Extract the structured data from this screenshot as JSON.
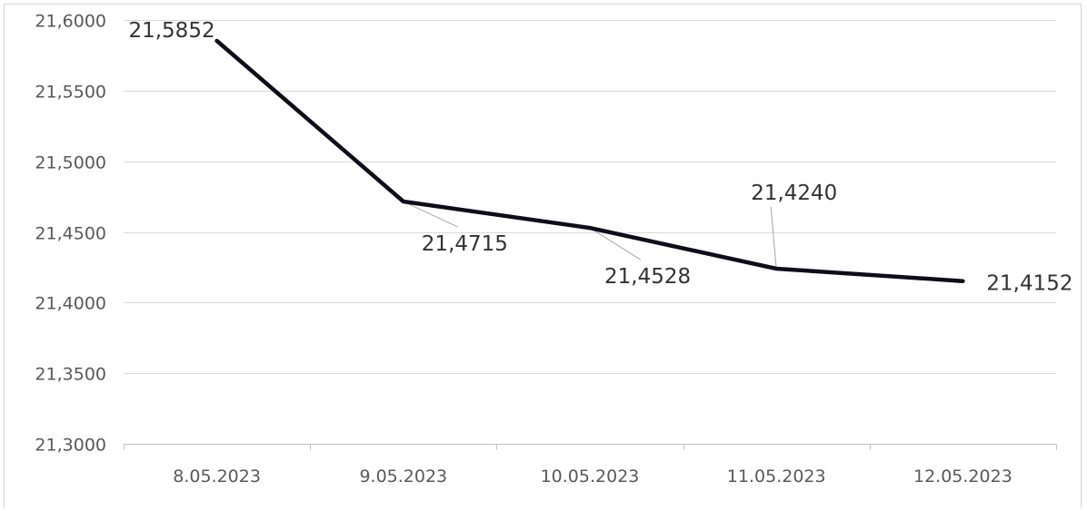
{
  "chart_data": {
    "type": "line",
    "title": "",
    "xlabel": "",
    "ylabel": "",
    "categories": [
      "8.05.2023",
      "9.05.2023",
      "10.05.2023",
      "11.05.2023",
      "12.05.2023"
    ],
    "series": [
      {
        "values": [
          21.5852,
          21.4715,
          21.4528,
          21.424,
          21.4152
        ],
        "color": "#0d0d1c"
      }
    ],
    "data_labels": [
      "21,5852",
      "21,4715",
      "21,4528",
      "21,4240",
      "21,4152"
    ],
    "ylim": [
      21.3,
      21.6
    ],
    "y_ticks": [
      21.3,
      21.35,
      21.4,
      21.45,
      21.5,
      21.55,
      21.6
    ],
    "y_tick_labels": [
      "21,3000",
      "21,3500",
      "21,4000",
      "21,4500",
      "21,5000",
      "21,5500",
      "21,6000"
    ],
    "grid": true,
    "legend": "none"
  }
}
